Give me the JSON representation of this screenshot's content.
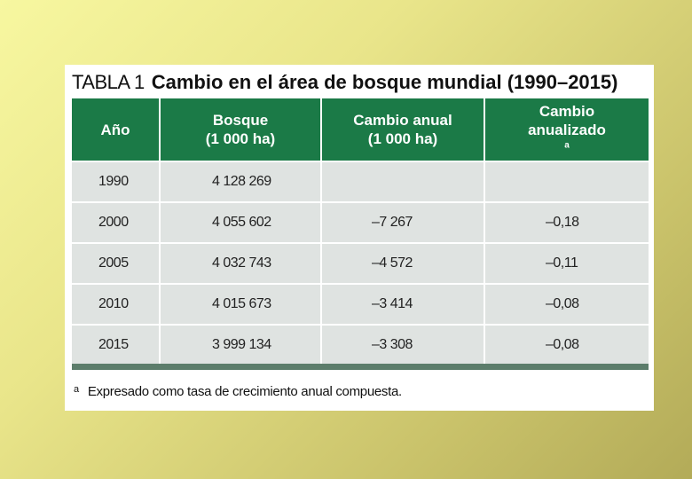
{
  "caption": {
    "label": "TABLA 1",
    "title": "Cambio en el área de bosque mundial (1990–2015)"
  },
  "table": {
    "headers": [
      {
        "line1": "Año",
        "line2": ""
      },
      {
        "line1": "Bosque",
        "line2": "(1 000  ha)"
      },
      {
        "line1": "Cambio anual",
        "line2": "(1 000 ha)"
      },
      {
        "line1": "Cambio",
        "line2": "anualizado",
        "sup": "a"
      }
    ],
    "rows": [
      {
        "year": "1990",
        "forest": "4 128 269",
        "annual_change": "",
        "annualized": ""
      },
      {
        "year": "2000",
        "forest": "4 055 602",
        "annual_change": "–7 267",
        "annualized": "–0,18"
      },
      {
        "year": "2005",
        "forest": "4 032 743",
        "annual_change": "–4 572",
        "annualized": "–0,11"
      },
      {
        "year": "2010",
        "forest": "4 015 673",
        "annual_change": "–3 414",
        "annualized": "–0,08"
      },
      {
        "year": "2015",
        "forest": "3 999 134",
        "annual_change": "–3 308",
        "annualized": "–0,08"
      }
    ]
  },
  "footnote": {
    "marker": "a",
    "text": "Expresado como tasa de crecimiento anual compuesta."
  },
  "colors": {
    "header_green": "#1b7a47",
    "row_gray": "#dfe3e1",
    "bottom_bar": "#5c7d6b",
    "background": "#e9e58a"
  }
}
